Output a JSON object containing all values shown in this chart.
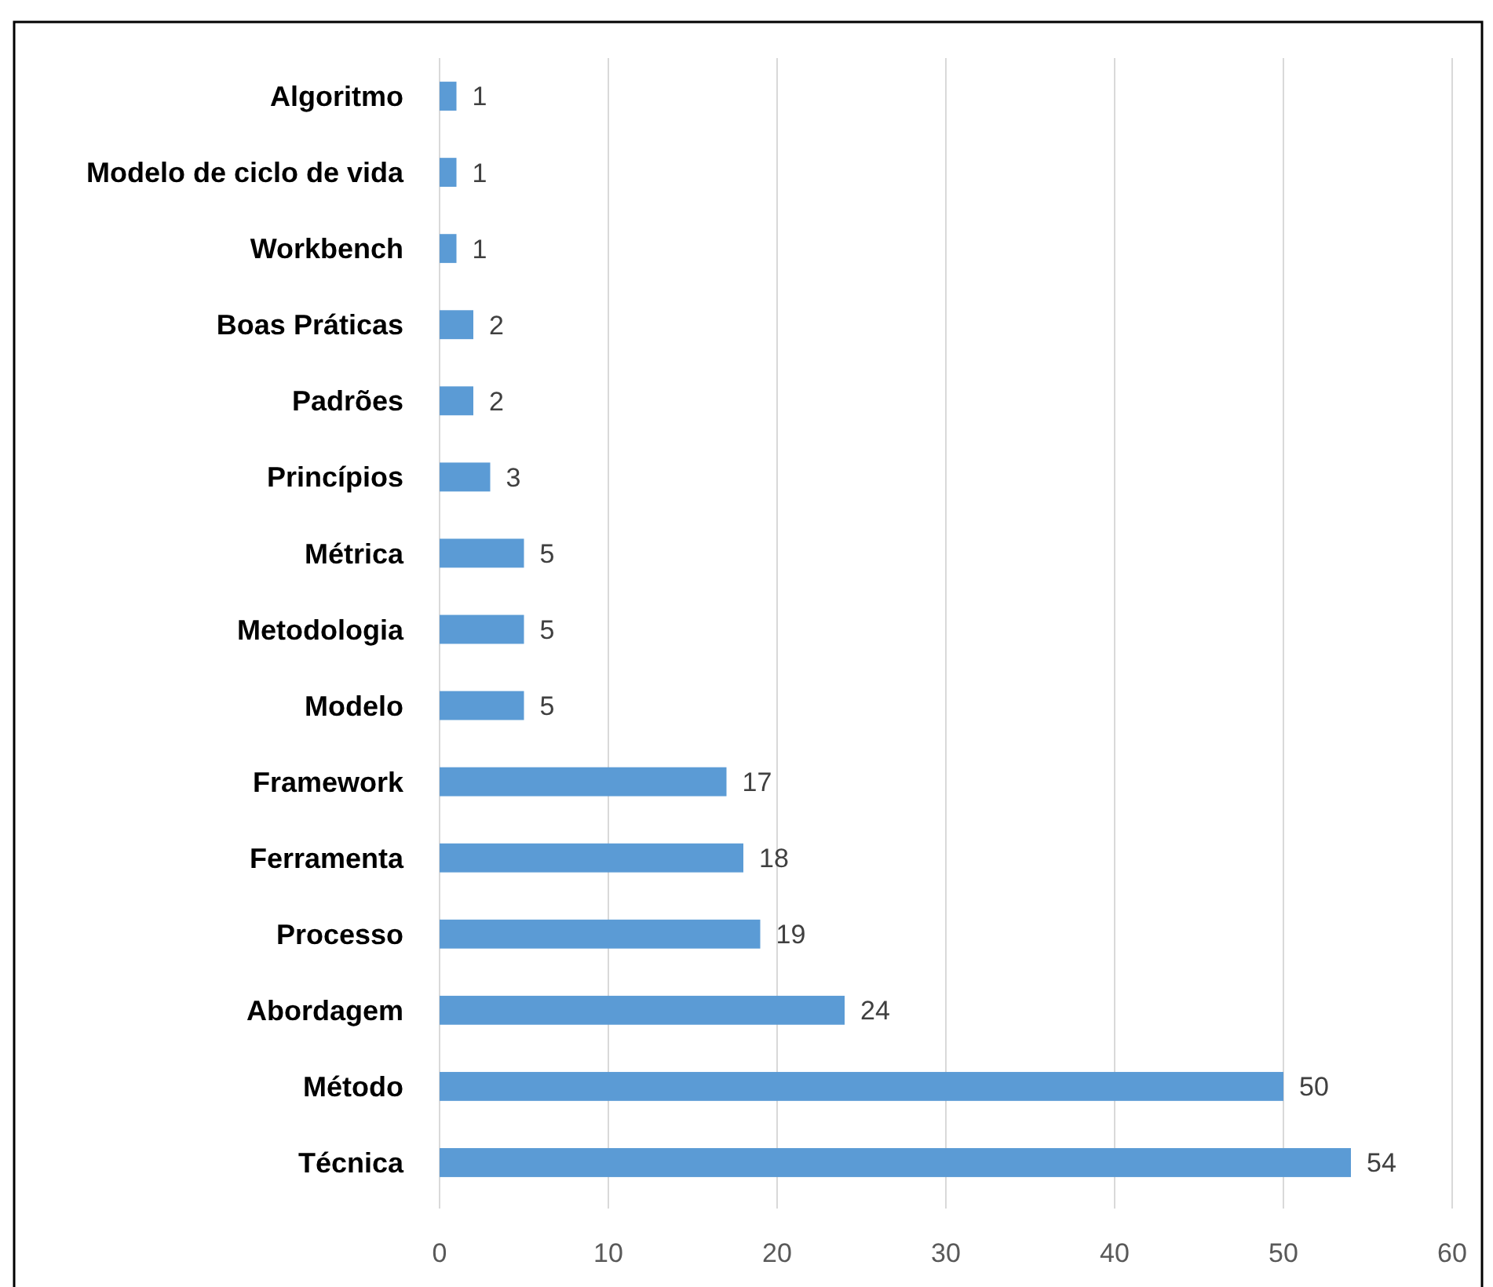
{
  "chart_data": {
    "type": "bar",
    "orientation": "horizontal",
    "categories": [
      "Algoritmo",
      "Modelo de ciclo de vida",
      "Workbench",
      "Boas Práticas",
      "Padrões",
      "Princípios",
      "Métrica",
      "Metodologia",
      "Modelo",
      "Framework",
      "Ferramenta",
      "Processo",
      "Abordagem",
      "Método",
      "Técnica"
    ],
    "values": [
      1,
      1,
      1,
      2,
      2,
      3,
      5,
      5,
      5,
      17,
      18,
      19,
      24,
      50,
      54
    ],
    "color": "#5b9bd5",
    "xlim": [
      0,
      60
    ],
    "xticks": [
      0,
      10,
      20,
      30,
      40,
      50,
      60
    ],
    "grid": "x",
    "data_labels": true
  }
}
